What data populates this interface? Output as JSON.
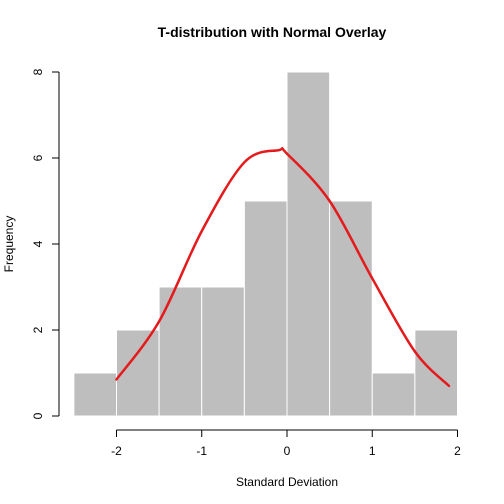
{
  "chart_data": {
    "type": "bar",
    "title": "T-distribution with Normal Overlay",
    "xlabel": "Standard Deviation",
    "ylabel": "Frequency",
    "bins": [
      {
        "start": -2.5,
        "end": -2.0,
        "count": 1
      },
      {
        "start": -2.0,
        "end": -1.5,
        "count": 2
      },
      {
        "start": -1.5,
        "end": -1.0,
        "count": 3
      },
      {
        "start": -1.0,
        "end": -0.5,
        "count": 3
      },
      {
        "start": -0.5,
        "end": 0.0,
        "count": 5
      },
      {
        "start": 0.0,
        "end": 0.5,
        "count": 8
      },
      {
        "start": 0.5,
        "end": 1.0,
        "count": 5
      },
      {
        "start": 1.0,
        "end": 1.5,
        "count": 1
      },
      {
        "start": 1.5,
        "end": 2.0,
        "count": 2
      }
    ],
    "xlim": [
      -2.5,
      2.0
    ],
    "ylim": [
      0,
      8
    ],
    "x_ticks": [
      -2,
      -1,
      0,
      1,
      2
    ],
    "x_tick_labels": [
      "-2",
      "-1",
      "0",
      "1",
      "2"
    ],
    "y_ticks": [
      0,
      2,
      4,
      6,
      8
    ],
    "y_tick_labels": [
      "0",
      "2",
      "4",
      "6",
      "8"
    ],
    "overlay": {
      "type": "line",
      "x": [
        -2.0,
        -1.5,
        -1.0,
        -0.5,
        -0.1,
        0.0,
        0.5,
        1.0,
        1.5,
        1.9
      ],
      "y": [
        0.85,
        2.2,
        4.3,
        5.9,
        6.18,
        6.1,
        5.0,
        3.2,
        1.5,
        0.7
      ]
    },
    "grid": false,
    "colors": {
      "bar": "#bebebe",
      "bar_border": "#ffffff",
      "curve": "#e41a1c",
      "axis": "#000000"
    }
  }
}
